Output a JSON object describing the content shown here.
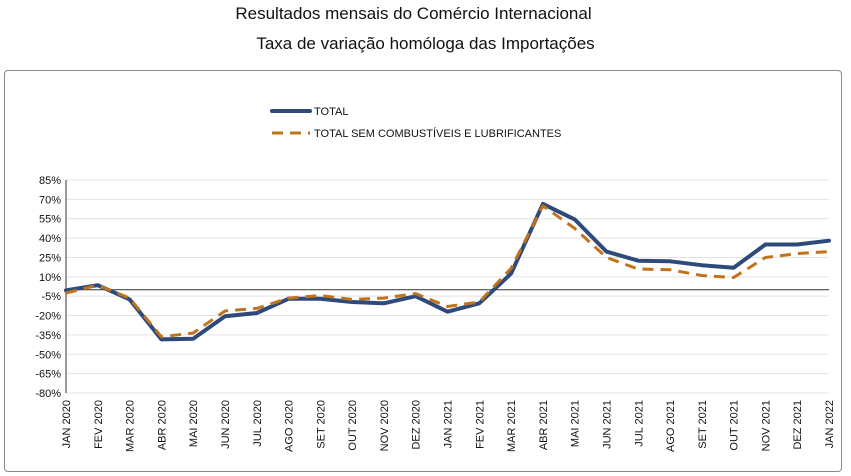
{
  "title": "Resultados mensais do Comércio Internacional",
  "subtitle": "Taxa de variação homóloga das Importações",
  "chart_data": {
    "type": "line",
    "categories": [
      "JAN 2020",
      "FEV 2020",
      "MAR 2020",
      "ABR 2020",
      "MAI 2020",
      "JUN 2020",
      "JUL 2020",
      "AGO 2020",
      "SET 2020",
      "OUT 2020",
      "NOV 2020",
      "DEZ 2020",
      "JAN 2021",
      "FEV 2021",
      "MAR 2021",
      "ABR 2021",
      "MAI 2021",
      "JUN 2021",
      "JUL 2021",
      "AGO 2021",
      "SET 2021",
      "OUT 2021",
      "NOV 2021",
      "DEZ 2021",
      "JAN 2022"
    ],
    "y_ticks": [
      "85%",
      "70%",
      "55%",
      "40%",
      "25%",
      "10%",
      "-5%",
      "-20%",
      "-35%",
      "-50%",
      "-65%",
      "-80%"
    ],
    "ylim": [
      -80,
      85
    ],
    "series": [
      {
        "name": "TOTAL",
        "color": "#2e4a7a",
        "style": "solid",
        "values": [
          -0.5,
          3.5,
          -7.5,
          -38.5,
          -38,
          -20.5,
          -18,
          -7,
          -7,
          -9.5,
          -10.5,
          -5,
          -17,
          -10.5,
          12.5,
          66.5,
          54.5,
          29.5,
          22.5,
          22,
          19,
          17,
          35,
          35,
          38
        ]
      },
      {
        "name": "TOTAL SEM COMBUSTÍVEIS E LUBRIFICANTES",
        "color": "#c0731f",
        "style": "dashed",
        "values": [
          -2.5,
          3.5,
          -6.5,
          -36.5,
          -33.5,
          -16.5,
          -14.5,
          -6.5,
          -4.5,
          -7.5,
          -6.5,
          -3,
          -13,
          -9.5,
          16.5,
          65,
          47.5,
          25,
          16,
          15.5,
          11,
          9.5,
          25,
          28,
          29.5
        ]
      }
    ],
    "legend_position": "top-center",
    "grid": true
  }
}
